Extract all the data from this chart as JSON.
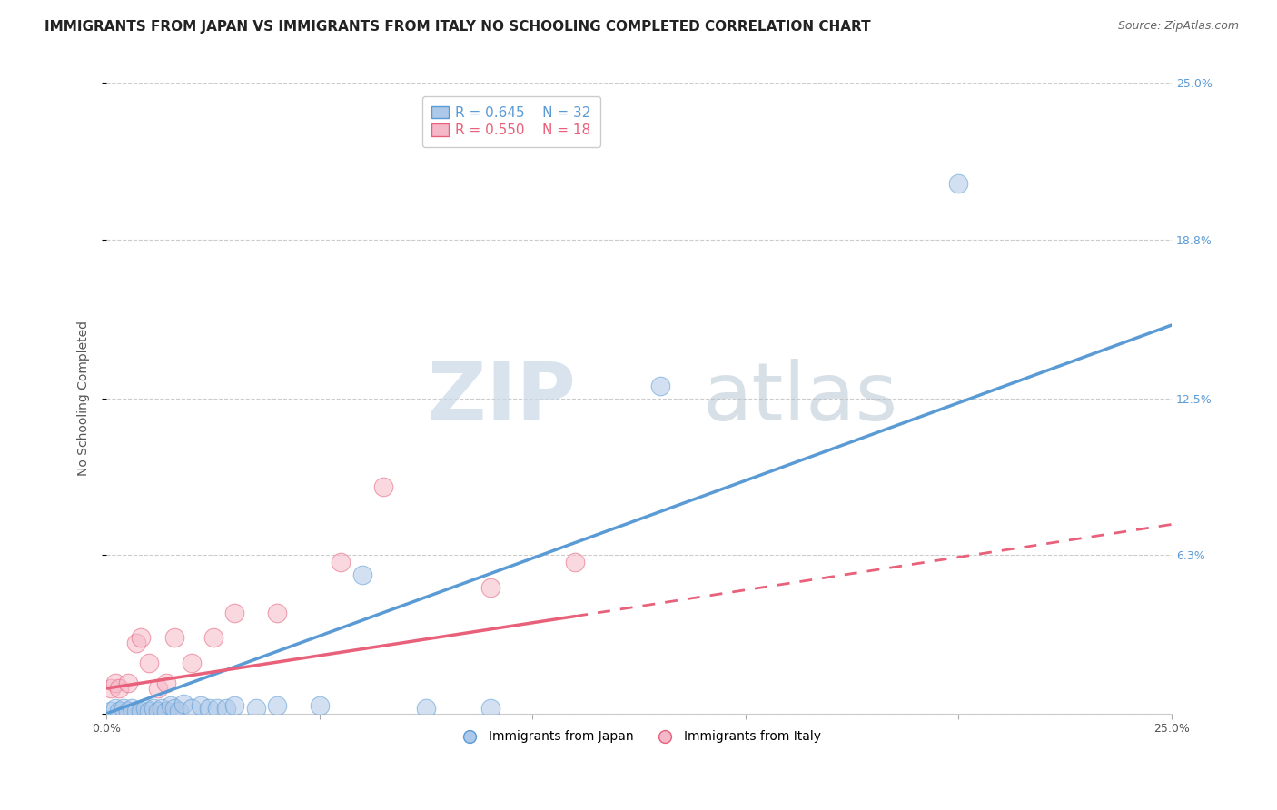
{
  "title": "IMMIGRANTS FROM JAPAN VS IMMIGRANTS FROM ITALY NO SCHOOLING COMPLETED CORRELATION CHART",
  "source": "Source: ZipAtlas.com",
  "ylabel": "No Schooling Completed",
  "xlim": [
    0,
    0.25
  ],
  "ylim": [
    0,
    0.25
  ],
  "ytick_vals": [
    0.0,
    0.063,
    0.125,
    0.188,
    0.25
  ],
  "ytick_right_labels": [
    "",
    "6.3%",
    "12.5%",
    "18.8%",
    "25.0%"
  ],
  "xtick_positions": [
    0.0,
    0.05,
    0.1,
    0.15,
    0.2,
    0.25
  ],
  "xtick_labels": [
    "0.0%",
    "",
    "",
    "",
    "",
    "25.0%"
  ],
  "grid_color": "#cccccc",
  "background_color": "#ffffff",
  "japan_color": "#adc8e8",
  "japan_line_color": "#5b9bd5",
  "italy_color": "#f5b8c8",
  "italy_line_color": "#e8607a",
  "legend_r_japan": "R = 0.645",
  "legend_n_japan": "N = 32",
  "legend_r_italy": "R = 0.550",
  "legend_n_italy": "N = 18",
  "japan_x": [
    0.001,
    0.002,
    0.003,
    0.004,
    0.005,
    0.006,
    0.007,
    0.008,
    0.009,
    0.01,
    0.011,
    0.012,
    0.013,
    0.014,
    0.015,
    0.016,
    0.017,
    0.018,
    0.02,
    0.022,
    0.024,
    0.026,
    0.028,
    0.03,
    0.035,
    0.04,
    0.05,
    0.06,
    0.075,
    0.09,
    0.13,
    0.2
  ],
  "japan_y": [
    0.001,
    0.002,
    0.001,
    0.002,
    0.001,
    0.002,
    0.001,
    0.001,
    0.002,
    0.001,
    0.002,
    0.001,
    0.002,
    0.001,
    0.003,
    0.002,
    0.001,
    0.004,
    0.002,
    0.003,
    0.002,
    0.002,
    0.002,
    0.003,
    0.002,
    0.003,
    0.003,
    0.055,
    0.002,
    0.002,
    0.13,
    0.21
  ],
  "italy_x": [
    0.001,
    0.002,
    0.003,
    0.005,
    0.007,
    0.008,
    0.01,
    0.012,
    0.014,
    0.016,
    0.02,
    0.025,
    0.03,
    0.04,
    0.055,
    0.065,
    0.09,
    0.11
  ],
  "italy_y": [
    0.01,
    0.012,
    0.01,
    0.012,
    0.028,
    0.03,
    0.02,
    0.01,
    0.012,
    0.03,
    0.02,
    0.03,
    0.04,
    0.04,
    0.06,
    0.09,
    0.05,
    0.06
  ],
  "japan_trend": [
    0.0,
    0.154
  ],
  "italy_trend_solid_end": 0.11,
  "italy_trend": [
    0.01,
    0.075
  ],
  "watermark_zip": "ZIP",
  "watermark_atlas": "atlas",
  "title_fontsize": 11,
  "axis_label_fontsize": 10,
  "tick_fontsize": 9,
  "legend_fontsize": 11
}
